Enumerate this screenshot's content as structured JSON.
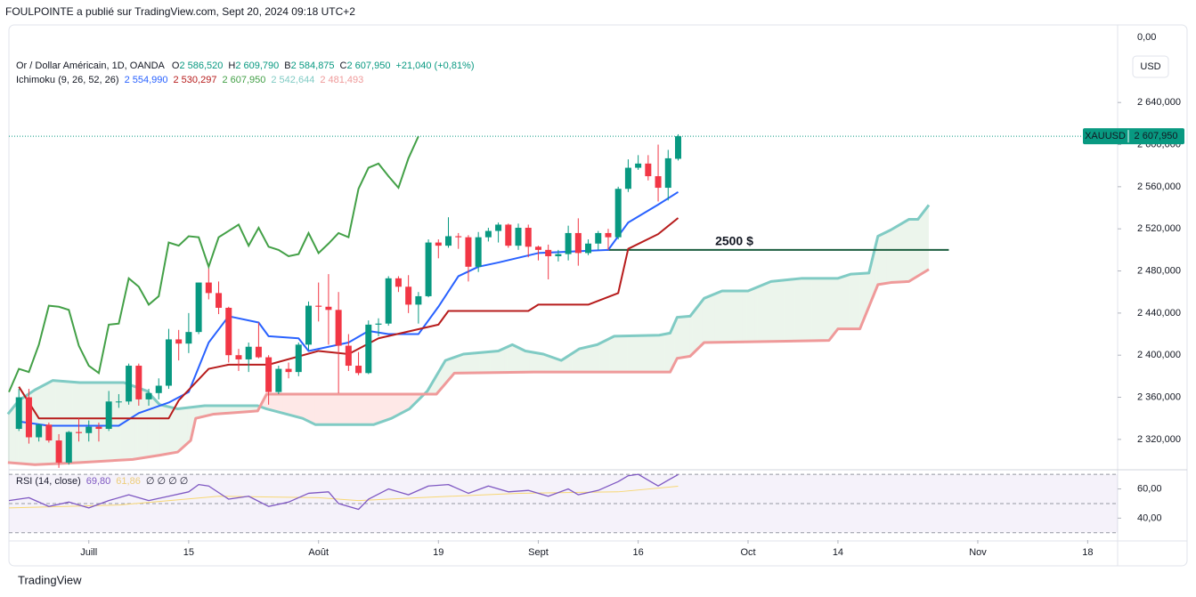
{
  "attribution": "FOULPOINTE a publié sur TradingView.com, Sept 20, 2024 09:18 UTC+2",
  "footer": "TradingView",
  "chart_data": {
    "type": "candlestick",
    "legend": {
      "symbol": "Or / Dollar Américain, 1D, OANDA",
      "o_key": "O",
      "o": "2 586,520",
      "h_key": "H",
      "h": "2 609,790",
      "b_key": "B",
      "b": "2 584,875",
      "c_key": "C",
      "c": "2 607,950",
      "change": "+21,040 (+0,81%)"
    },
    "indicator": {
      "name": "Ichimoku (9, 26, 52, 26)",
      "values": [
        "2 554,990",
        "2 530,297",
        "2 607,950",
        "2 542,644",
        "2 481,493"
      ]
    },
    "currency": "USD",
    "axis_top_label": "0,00",
    "colors": {
      "up": "#089981",
      "down": "#f23645"
    },
    "ohlc": {
      "open": [
        2330,
        2360,
        2322,
        2334,
        2319,
        2298,
        2327,
        2326,
        2332,
        2330,
        2356,
        2356,
        2390,
        2358,
        2364,
        2371,
        2415,
        2411,
        2422,
        2469,
        2459,
        2445,
        2400,
        2396,
        2408,
        2398,
        2365,
        2387,
        2384,
        2410,
        2447,
        2446,
        2443,
        2409,
        2390,
        2383,
        2429,
        2430,
        2473,
        2465,
        2448,
        2456,
        2507,
        2504,
        2513,
        2512,
        2484,
        2512,
        2518,
        2524,
        2504,
        2521,
        2503,
        2500,
        2494,
        2496,
        2516,
        2497,
        2506,
        2516,
        2512,
        2558,
        2578,
        2582,
        2570,
        2559,
        2586.52
      ],
      "high": [
        2368,
        2368,
        2335,
        2336,
        2325,
        2328,
        2340,
        2338,
        2336,
        2366,
        2363,
        2392,
        2392,
        2368,
        2378,
        2425,
        2424,
        2440,
        2469,
        2483,
        2470,
        2446,
        2406,
        2412,
        2431,
        2400,
        2390,
        2393,
        2412,
        2451,
        2469,
        2477,
        2460,
        2420,
        2403,
        2433,
        2435,
        2475,
        2475,
        2476,
        2460,
        2510,
        2510,
        2531,
        2516,
        2514,
        2517,
        2521,
        2526,
        2525,
        2525,
        2524,
        2504,
        2505,
        2500,
        2523,
        2530,
        2510,
        2518,
        2520,
        2560,
        2586,
        2590,
        2590,
        2600,
        2595,
        2609.79
      ],
      "low": [
        2328,
        2316,
        2318,
        2317,
        2293,
        2296,
        2318,
        2318,
        2318,
        2328,
        2350,
        2353,
        2352,
        2352,
        2358,
        2368,
        2395,
        2402,
        2420,
        2453,
        2439,
        2393,
        2385,
        2384,
        2397,
        2353,
        2363,
        2378,
        2380,
        2405,
        2432,
        2410,
        2364,
        2385,
        2381,
        2382,
        2418,
        2428,
        2460,
        2440,
        2430,
        2455,
        2492,
        2502,
        2501,
        2470,
        2479,
        2508,
        2507,
        2502,
        2500,
        2493,
        2490,
        2472,
        2489,
        2490,
        2485,
        2495,
        2500,
        2500,
        2510,
        2555,
        2576,
        2566,
        2546,
        2547,
        2584.875
      ],
      "close": [
        2360,
        2322,
        2334,
        2319,
        2298,
        2327,
        2326,
        2332,
        2330,
        2356,
        2356,
        2390,
        2358,
        2364,
        2371,
        2415,
        2411,
        2422,
        2469,
        2459,
        2445,
        2400,
        2396,
        2408,
        2398,
        2365,
        2387,
        2384,
        2410,
        2447,
        2446,
        2443,
        2409,
        2390,
        2383,
        2429,
        2430,
        2473,
        2465,
        2448,
        2456,
        2507,
        2504,
        2513,
        2512,
        2484,
        2512,
        2518,
        2524,
        2504,
        2521,
        2503,
        2500,
        2494,
        2496,
        2516,
        2497,
        2506,
        2516,
        2512,
        2558,
        2578,
        2582,
        2570,
        2559,
        2587,
        2607.95
      ]
    },
    "lines": [
      {
        "color": "#2962ff",
        "x": [
          0,
          3,
          10,
          12,
          15,
          17,
          19,
          21,
          24,
          25,
          28,
          29,
          33,
          35,
          37,
          40,
          42,
          44,
          46,
          48,
          52,
          59,
          61,
          64,
          66
        ],
        "values": [
          2337,
          2333,
          2333,
          2345,
          2355,
          2365,
          2412,
          2437,
          2431,
          2418,
          2416,
          2404,
          2412,
          2423,
          2420,
          2420,
          2446,
          2475,
          2484,
          2488,
          2497,
          2500,
          2526,
          2543,
          2554.99
        ]
      },
      {
        "color": "#b71c1c",
        "x": [
          0,
          2,
          15,
          16,
          19,
          21,
          25,
          30,
          33,
          36,
          42,
          43,
          51,
          52,
          57,
          60,
          61,
          64,
          66
        ],
        "values": [
          2370,
          2340,
          2340,
          2357,
          2387,
          2391,
          2391,
          2404,
          2401,
          2416,
          2429,
          2442,
          2442,
          2448,
          2448,
          2459,
          2501,
          2515,
          2530.297
        ]
      }
    ],
    "chikou": {
      "color": "#43a047",
      "shift": -26
    },
    "cloud": {
      "span_a": {
        "color": "#80cbc4",
        "x": [
          -1.1,
          0,
          1.6,
          3.4,
          6.1,
          10.5,
          12.8,
          14.1,
          15.9,
          18.6,
          23.9,
          24.8,
          28.4,
          29.7,
          35.5,
          37.3,
          39.1,
          40.9,
          42.7,
          44.5,
          48,
          49.4,
          50.7,
          52.5,
          54.3,
          56.1,
          57.9,
          59.6,
          64.1,
          65.2,
          65.9,
          67.2,
          68.6,
          70.4,
          73,
          75.3,
          78.4,
          82,
          83.3,
          85.1,
          86,
          87.3,
          89.1,
          90,
          91.1
        ],
        "values": [
          2344,
          2357,
          2367,
          2376,
          2374,
          2374,
          2366,
          2353,
          2349,
          2352,
          2352,
          2349,
          2340,
          2334,
          2334,
          2340,
          2349,
          2366,
          2395,
          2401,
          2404,
          2410,
          2404,
          2401,
          2395,
          2406,
          2410,
          2418,
          2419,
          2421,
          2436,
          2437,
          2454,
          2461,
          2461,
          2470,
          2473,
          2473,
          2477,
          2478,
          2513,
          2519,
          2529,
          2529,
          2542.644
        ]
      },
      "span_b": {
        "color": "#ef9a9a",
        "x": [
          -1.1,
          1.6,
          6.1,
          9.6,
          11.4,
          14.1,
          15.9,
          17.2,
          17.7,
          19.5,
          23.9,
          24.8,
          41.8,
          43.6,
          51.6,
          65.2,
          65.9,
          67.2,
          68.6,
          81.1,
          82,
          84.2,
          86,
          87.3,
          89.1,
          91.1
        ],
        "values": [
          2298,
          2296,
          2298,
          2300,
          2301,
          2305,
          2308,
          2319,
          2340,
          2344,
          2347,
          2363,
          2363,
          2383,
          2384,
          2384,
          2397,
          2399,
          2412,
          2414,
          2425,
          2425,
          2467,
          2469,
          2470,
          2481.493
        ]
      },
      "up_fill": "rgba(67,160,71,0.10)",
      "down_fill": "rgba(244,67,54,0.12)"
    },
    "xlim": [
      -1,
      110
    ],
    "xticks": [
      {
        "value": 7,
        "label": "Juill"
      },
      {
        "value": 17,
        "label": "15"
      },
      {
        "value": 30,
        "label": "Août"
      },
      {
        "value": 42,
        "label": "19"
      },
      {
        "value": 52,
        "label": "Sept"
      },
      {
        "value": 62,
        "label": "16"
      },
      {
        "value": 73,
        "label": "Oct"
      },
      {
        "value": 82,
        "label": "14"
      },
      {
        "value": 96,
        "label": "Nov"
      },
      {
        "value": 107,
        "label": "18"
      }
    ],
    "ylim": [
      2292,
      2712
    ],
    "yticks": [
      {
        "value": 2320,
        "label": "2 320,000"
      },
      {
        "value": 2360,
        "label": "2 360,000"
      },
      {
        "value": 2400,
        "label": "2 400,000"
      },
      {
        "value": 2440,
        "label": "2 440,000"
      },
      {
        "value": 2480,
        "label": "2 480,000"
      },
      {
        "value": 2520,
        "label": "2 520,000"
      },
      {
        "value": 2560,
        "label": "2 560,000"
      },
      {
        "value": 2600,
        "label": "2 600,000"
      },
      {
        "value": 2640,
        "label": "2 640,000"
      }
    ],
    "last_price": {
      "symbol": "XAUUSD",
      "value": 2607.95,
      "label": "2 607,950",
      "color": "#089981"
    },
    "hline": {
      "value": 2500,
      "label": "2500 $",
      "x": [
        58.8,
        93.1
      ],
      "color": "#1b5e3f"
    },
    "rsi": {
      "name": "RSI (14, close)",
      "value_label": "69,80",
      "ma_label": "61,86",
      "extra": "∅ ∅ ∅ ∅",
      "series": [
        {
          "color": "#7e57c2",
          "x": [
            -1,
            1,
            3,
            5,
            7,
            9,
            11,
            13,
            15,
            17,
            18,
            19,
            21,
            23,
            25,
            27,
            29,
            31,
            32,
            34,
            35,
            37,
            39,
            41,
            43,
            45,
            47,
            49,
            51,
            53,
            55,
            56,
            58,
            60,
            61,
            62,
            63,
            64,
            65,
            66
          ],
          "values": [
            52,
            54,
            48,
            51,
            47,
            52,
            56,
            52,
            55,
            58,
            63,
            62,
            53,
            55,
            48,
            51,
            57,
            58,
            50,
            46,
            53,
            60,
            56,
            62,
            63,
            57,
            62,
            58,
            59,
            55,
            60,
            56,
            59,
            65,
            69,
            70,
            66,
            62,
            66,
            69.8
          ]
        },
        {
          "color": "#f7d774",
          "x": [
            -1,
            10,
            20,
            30,
            34,
            40,
            50,
            60,
            66
          ],
          "values": [
            47,
            49,
            55,
            54,
            52,
            54,
            57,
            58,
            61.86
          ]
        }
      ],
      "ylim": [
        25,
        72.5
      ],
      "yticks": [
        {
          "value": 60,
          "label": "60,00"
        },
        {
          "value": 40,
          "label": "40,00"
        }
      ],
      "levels": [
        70,
        50,
        30
      ],
      "band": "rgba(126,87,194,0.08)"
    }
  }
}
